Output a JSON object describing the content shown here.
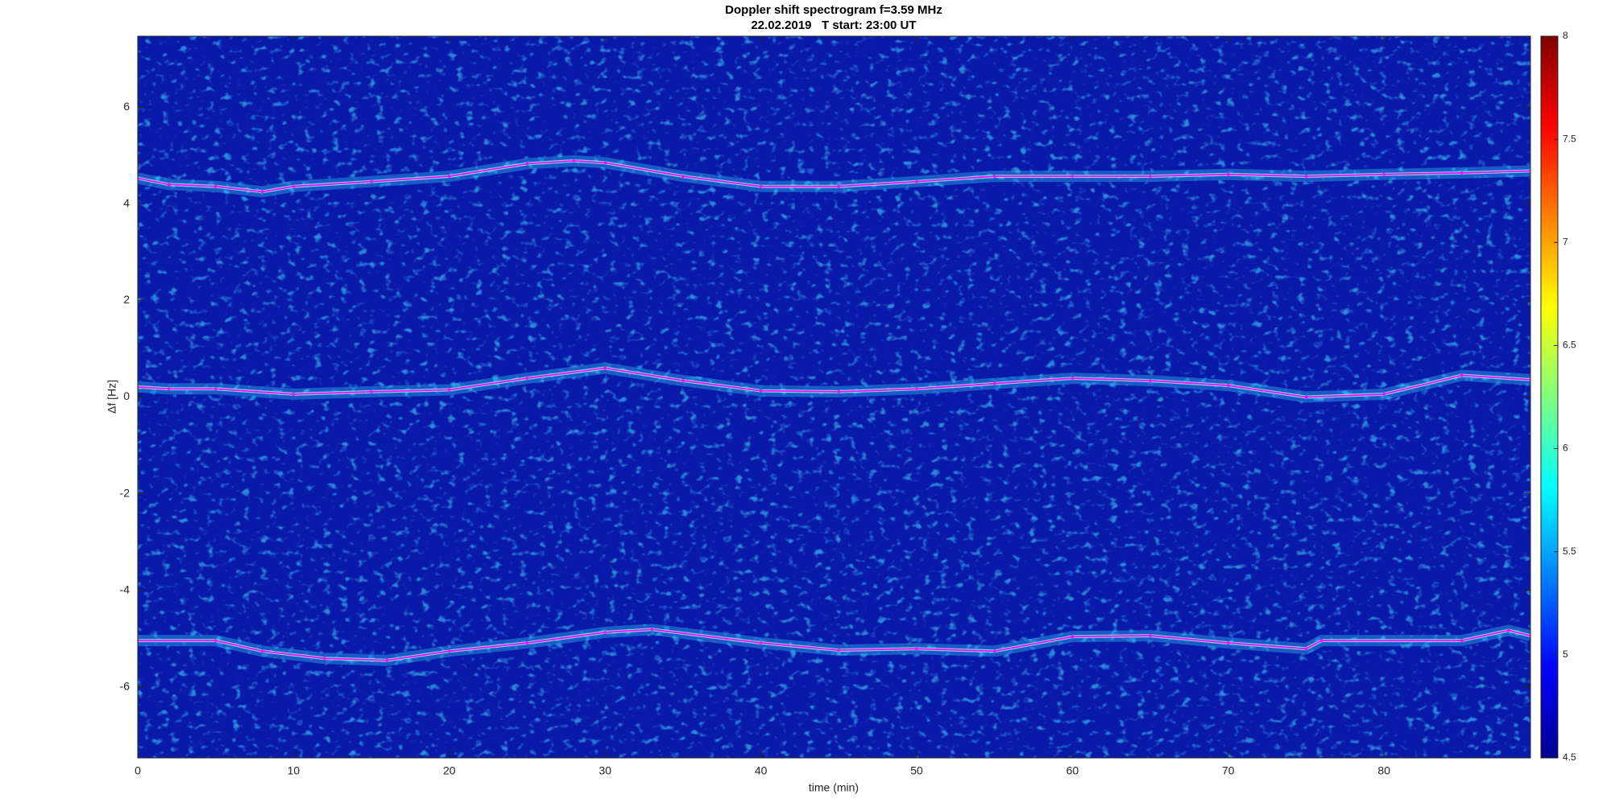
{
  "chart_data": {
    "type": "spectrogram",
    "title": "Doppler shift spectrogram f=3.59 MHz",
    "subtitle": "22.02.2019   T start: 23:00 UT",
    "x_label": "time (min)",
    "y_label": "Δf [Hz]",
    "xlim": [
      0,
      89.4
    ],
    "xticks": [
      0,
      10,
      20,
      30,
      40,
      50,
      60,
      70,
      80
    ],
    "ylim": [
      -7.47,
      7.47
    ],
    "yticks": [
      -6,
      -4,
      -2,
      0,
      2,
      4,
      6
    ],
    "clim": [
      4.5,
      8
    ],
    "cticks": [
      4.5,
      5,
      5.5,
      6,
      6.5,
      7,
      7.5,
      8
    ],
    "series": [
      {
        "color": "#ff00ff",
        "x": [
          0,
          2,
          5,
          8,
          10,
          15,
          20,
          25,
          28,
          30,
          35,
          40,
          45,
          50,
          55,
          60,
          65,
          70,
          75,
          80,
          85,
          89.4
        ],
        "values": [
          4.53,
          4.4,
          4.36,
          4.25,
          4.36,
          4.46,
          4.57,
          4.83,
          4.89,
          4.85,
          4.57,
          4.36,
          4.36,
          4.46,
          4.57,
          4.57,
          4.57,
          4.61,
          4.57,
          4.61,
          4.64,
          4.68
        ]
      },
      {
        "color": "#ff00ff",
        "x": [
          0,
          2,
          5,
          10,
          15,
          20,
          25,
          30,
          35,
          40,
          45,
          50,
          55,
          60,
          65,
          70,
          75,
          80,
          85,
          89.4
        ],
        "values": [
          0.21,
          0.17,
          0.17,
          0.06,
          0.11,
          0.15,
          0.39,
          0.6,
          0.34,
          0.13,
          0.11,
          0.17,
          0.28,
          0.39,
          0.34,
          0.24,
          0.0,
          0.06,
          0.45,
          0.36
        ]
      },
      {
        "color": "#ff00ff",
        "x": [
          0,
          5,
          8,
          12,
          16,
          20,
          25,
          30,
          33,
          40,
          45,
          50,
          55,
          60,
          65,
          70,
          75,
          76,
          85,
          88,
          89.4
        ],
        "values": [
          -5.04,
          -5.04,
          -5.26,
          -5.41,
          -5.45,
          -5.26,
          -5.09,
          -4.87,
          -4.81,
          -5.09,
          -5.24,
          -5.21,
          -5.26,
          -4.96,
          -4.94,
          -5.09,
          -5.21,
          -5.04,
          -5.04,
          -4.83,
          -4.94
        ]
      }
    ]
  }
}
